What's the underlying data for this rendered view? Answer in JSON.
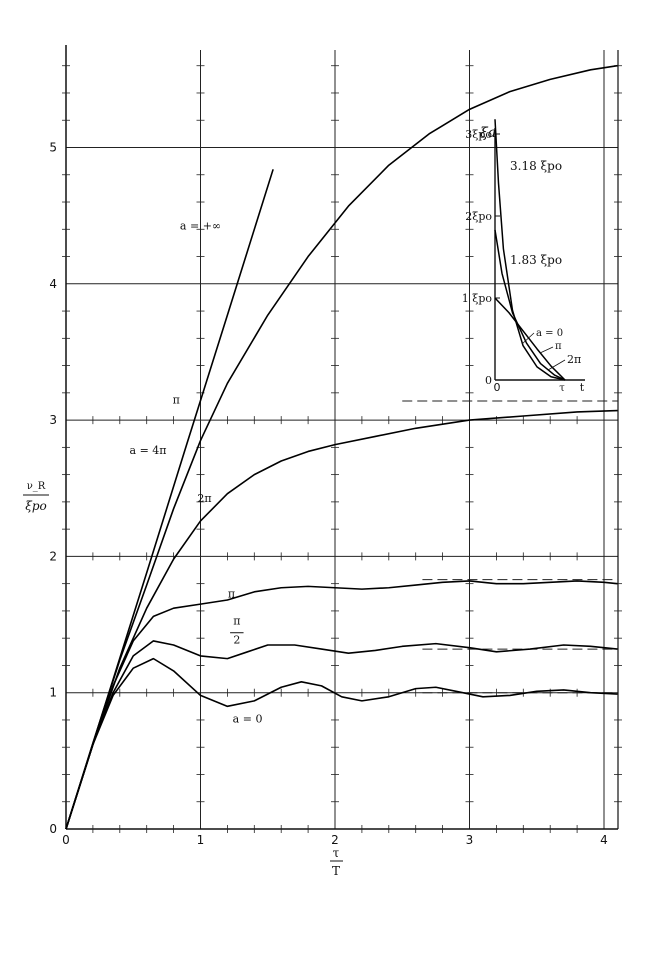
{
  "chart_data": {
    "type": "line",
    "xlabel_num": "τ",
    "xlabel_den": "T",
    "ylabel_num": "ν_R",
    "ylabel_den": "ξpo",
    "xlim": [
      0,
      4.1
    ],
    "ylim": [
      0,
      5.7
    ],
    "x_ticks": [
      "0",
      "1",
      "2",
      "3",
      "4"
    ],
    "y_ticks": [
      "0",
      "1",
      "2",
      "3",
      "4",
      "5"
    ],
    "series": [
      {
        "name": "a = +∞",
        "x": [
          0,
          0.3,
          0.6,
          0.9,
          1.2,
          1.54
        ],
        "y": [
          0,
          0.94,
          1.88,
          2.83,
          3.77,
          4.84
        ]
      },
      {
        "name": "a = 4π",
        "x": [
          0,
          0.2,
          0.4,
          0.6,
          0.8,
          1.0,
          1.2,
          1.5,
          1.8,
          2.1,
          2.4,
          2.7,
          3.0,
          3.3,
          3.6,
          3.9,
          4.1
        ],
        "y": [
          0,
          0.63,
          1.24,
          1.79,
          2.35,
          2.85,
          3.27,
          3.77,
          4.2,
          4.57,
          4.87,
          5.1,
          5.28,
          5.41,
          5.5,
          5.57,
          5.6
        ]
      },
      {
        "name": "2π",
        "x": [
          0,
          0.2,
          0.4,
          0.6,
          0.8,
          1.0,
          1.2,
          1.4,
          1.6,
          1.8,
          2.0,
          2.3,
          2.6,
          3.0,
          3.4,
          3.8,
          4.1
        ],
        "y": [
          0,
          0.62,
          1.18,
          1.62,
          1.98,
          2.26,
          2.46,
          2.6,
          2.7,
          2.77,
          2.82,
          2.88,
          2.94,
          3.0,
          3.03,
          3.06,
          3.07
        ]
      },
      {
        "name": "π",
        "x": [
          0,
          0.2,
          0.35,
          0.5,
          0.65,
          0.8,
          1.0,
          1.2,
          1.4,
          1.6,
          1.8,
          2.0,
          2.2,
          2.4,
          2.6,
          2.8,
          3.0,
          3.2,
          3.4,
          3.6,
          3.8,
          4.0,
          4.1
        ],
        "y": [
          0,
          0.62,
          1.05,
          1.38,
          1.56,
          1.62,
          1.65,
          1.68,
          1.74,
          1.77,
          1.78,
          1.77,
          1.76,
          1.77,
          1.79,
          1.81,
          1.82,
          1.8,
          1.8,
          1.81,
          1.82,
          1.81,
          1.8
        ]
      },
      {
        "name": "π/2",
        "x": [
          0,
          0.2,
          0.35,
          0.5,
          0.65,
          0.8,
          1.0,
          1.2,
          1.35,
          1.5,
          1.7,
          1.9,
          2.1,
          2.3,
          2.5,
          2.75,
          3.0,
          3.2,
          3.45,
          3.7,
          3.9,
          4.1
        ],
        "y": [
          0,
          0.62,
          1.0,
          1.27,
          1.38,
          1.35,
          1.27,
          1.25,
          1.3,
          1.35,
          1.35,
          1.32,
          1.29,
          1.31,
          1.34,
          1.36,
          1.33,
          1.3,
          1.32,
          1.35,
          1.34,
          1.32
        ]
      },
      {
        "name": "a = 0",
        "x": [
          0,
          0.2,
          0.35,
          0.5,
          0.65,
          0.8,
          1.0,
          1.2,
          1.4,
          1.6,
          1.75,
          1.9,
          2.05,
          2.2,
          2.4,
          2.6,
          2.75,
          2.9,
          3.1,
          3.3,
          3.5,
          3.7,
          3.9,
          4.1
        ],
        "y": [
          0,
          0.62,
          0.98,
          1.18,
          1.25,
          1.16,
          0.98,
          0.9,
          0.94,
          1.04,
          1.08,
          1.05,
          0.97,
          0.94,
          0.97,
          1.03,
          1.04,
          1.01,
          0.97,
          0.98,
          1.01,
          1.02,
          1.0,
          0.99
        ]
      }
    ],
    "series_labels": [
      {
        "text": "a = +∞",
        "x": 1.0,
        "y": 4.4
      },
      {
        "text": "a = 4π",
        "x": 0.61,
        "y": 2.75
      },
      {
        "text": "π",
        "x": 0.82,
        "y": 3.12
      },
      {
        "text": "2π",
        "x": 1.03,
        "y": 2.4
      },
      {
        "text": "π",
        "x": 1.23,
        "y": 1.7
      },
      {
        "text": "π",
        "x": 1.27,
        "y": 1.5
      },
      {
        "text": "2",
        "x": 1.27,
        "y": 1.36
      },
      {
        "text": "a = 0",
        "x": 1.35,
        "y": 0.78
      }
    ],
    "asymptotes": [
      {
        "y": 3.14,
        "x_from": 2.5,
        "x_to": 4.1
      },
      {
        "y": 1.83,
        "x_from": 2.65,
        "x_to": 4.1
      },
      {
        "y": 1.32,
        "x_from": 2.65,
        "x_to": 4.1
      },
      {
        "y": 1.0,
        "x_from": 2.65,
        "x_to": 4.1
      }
    ],
    "inset": {
      "ylabel": "ξa",
      "xlabel_tau": "τ",
      "xlabel_t": "t",
      "origin_label": "0",
      "y_ticks": [
        "0",
        "1 ξpo",
        "2ξpo",
        "3ξpo"
      ],
      "annotations": [
        "3.18 ξpo",
        "1.83 ξpo"
      ],
      "curves": [
        {
          "name": "a = 0",
          "t": [
            0,
            0.2,
            0.4,
            0.6,
            0.8,
            1.0
          ],
          "y": [
            1.0,
            0.82,
            0.6,
            0.38,
            0.17,
            0
          ]
        },
        {
          "name": "π",
          "t": [
            0,
            0.1,
            0.25,
            0.45,
            0.65,
            0.85,
            1.0
          ],
          "y": [
            1.83,
            1.3,
            0.82,
            0.45,
            0.2,
            0.06,
            0
          ]
        },
        {
          "name": "2π",
          "t": [
            0,
            0.05,
            0.12,
            0.25,
            0.4,
            0.6,
            0.8,
            1.0
          ],
          "y": [
            3.18,
            2.4,
            1.6,
            0.85,
            0.42,
            0.16,
            0.04,
            0
          ]
        }
      ]
    }
  }
}
